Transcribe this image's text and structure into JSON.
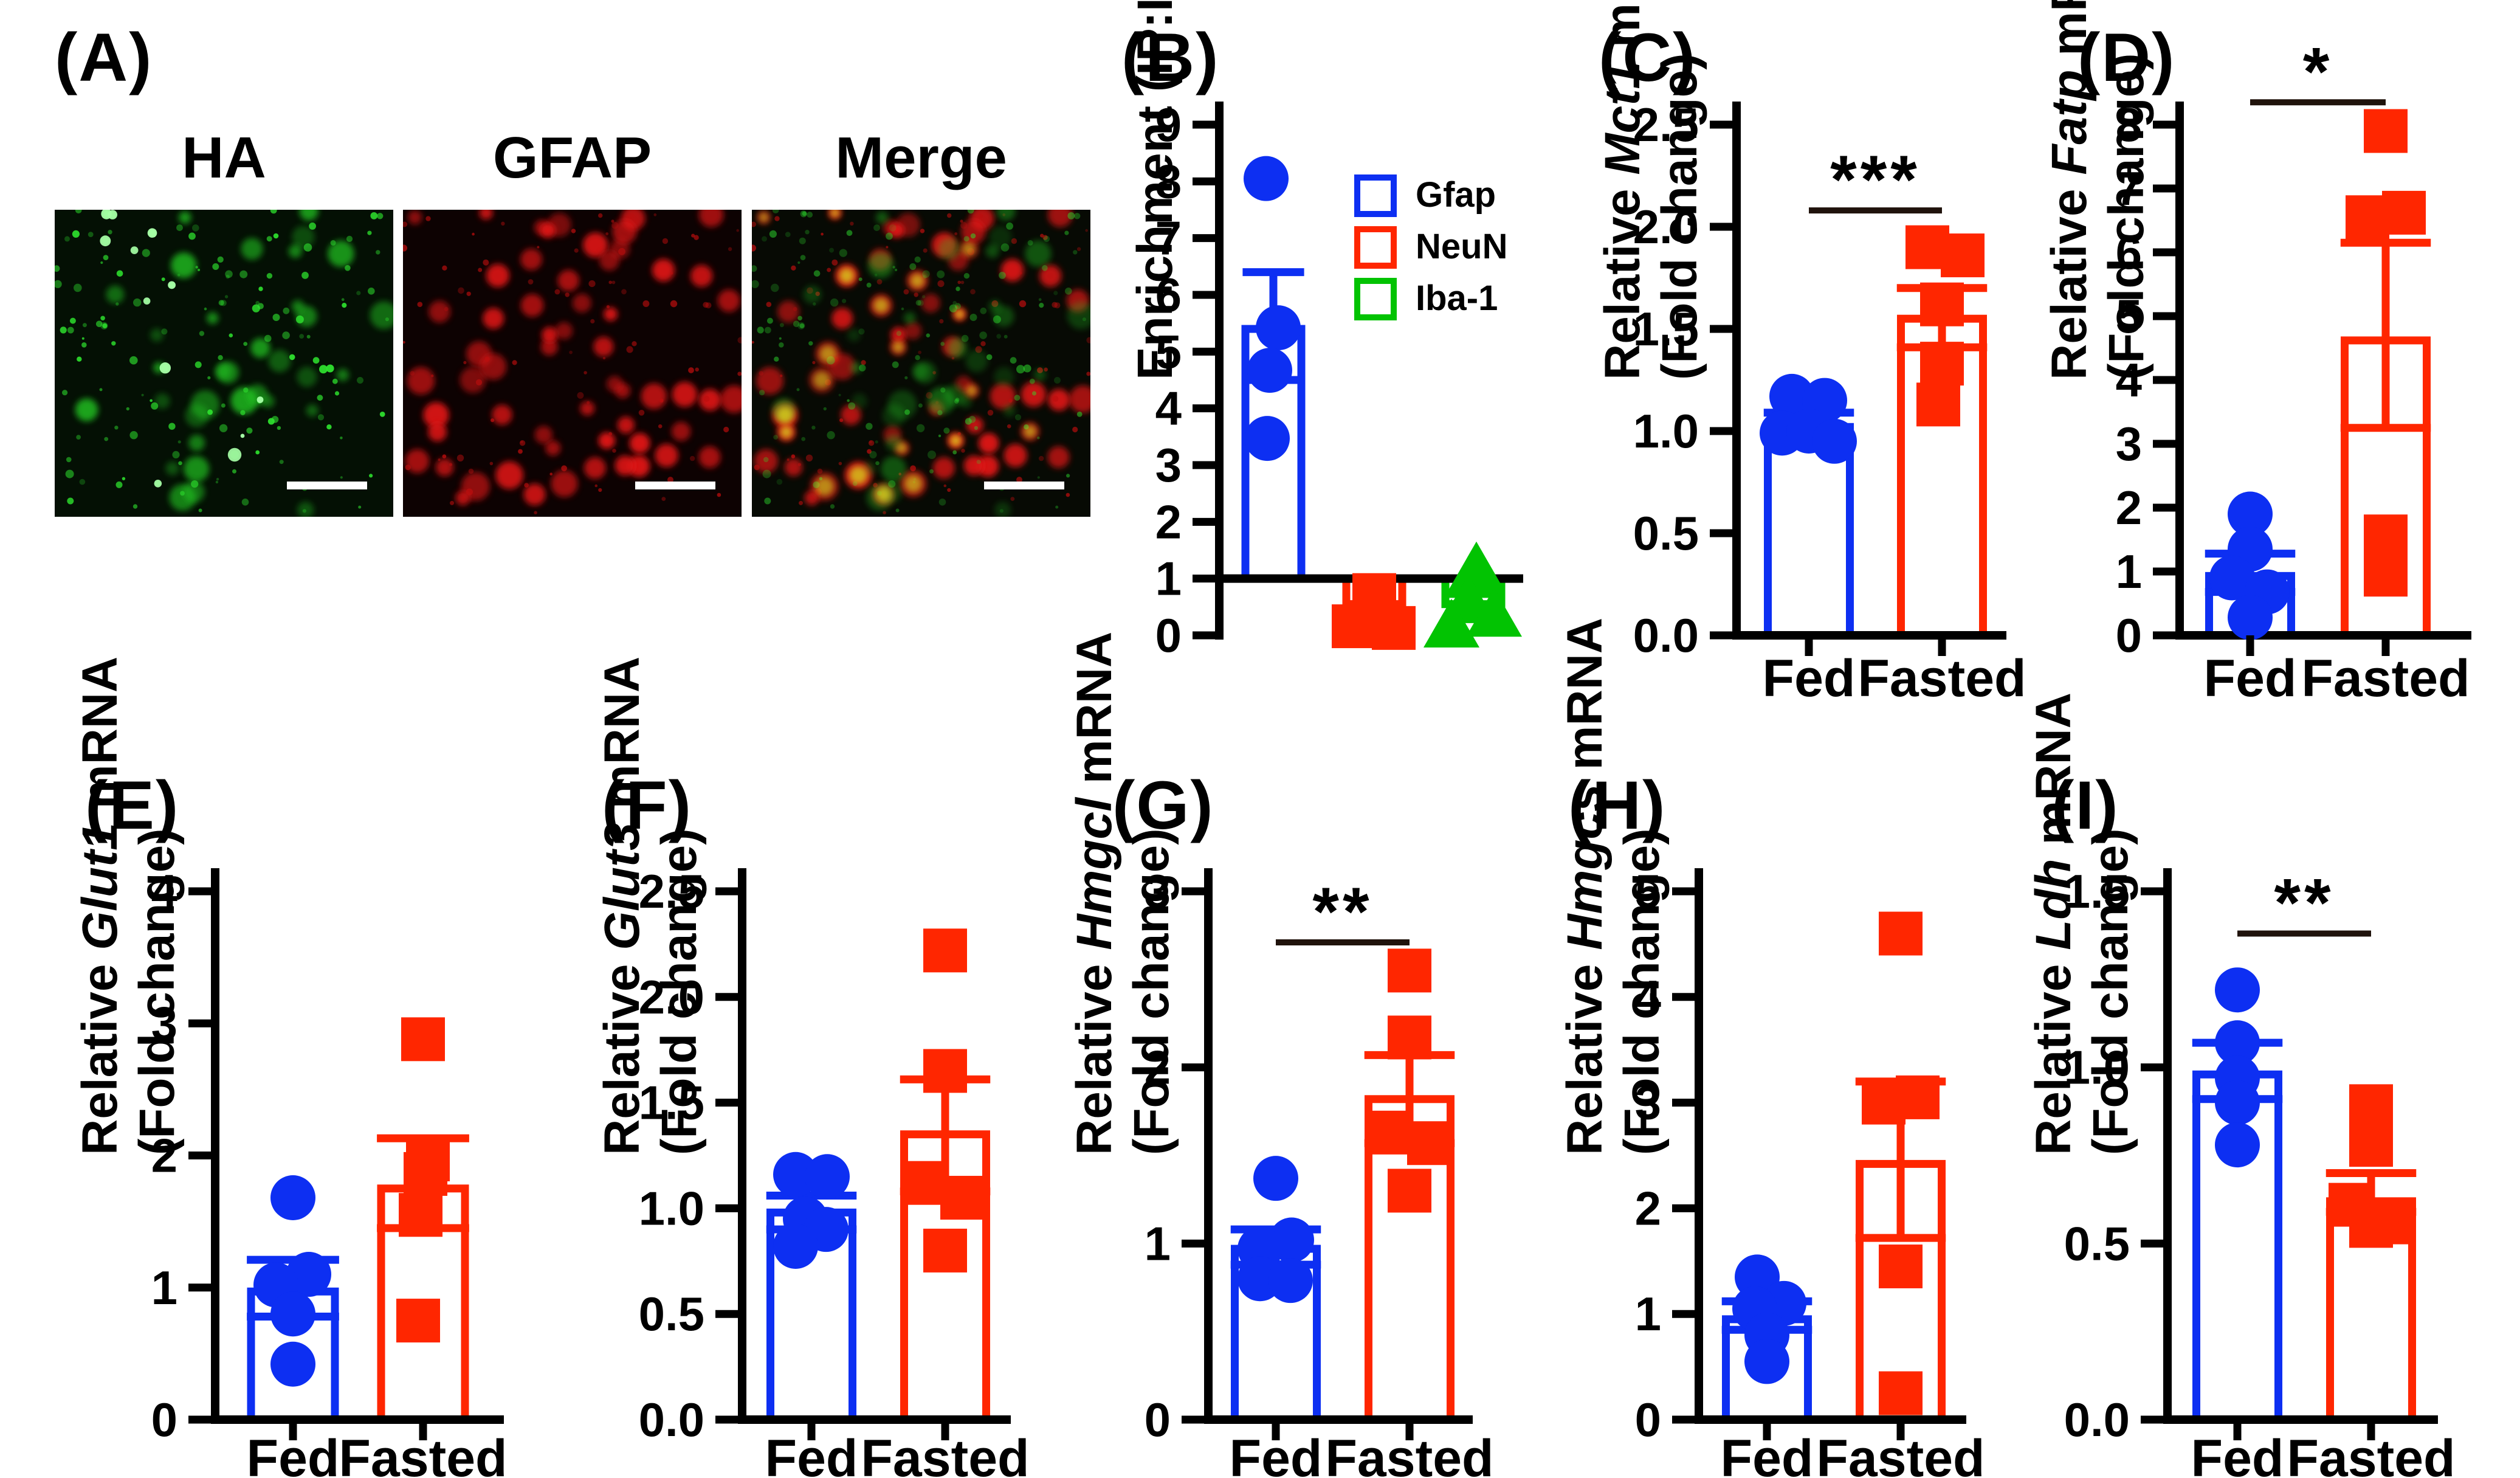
{
  "figure": {
    "colors": {
      "blue": "#0d2ff2",
      "red": "#ff2600",
      "green": "#02c302",
      "axis": "#000000",
      "sig_line": "#20130c",
      "white": "#ffffff"
    },
    "panel_a": {
      "label": "(A)",
      "images": [
        {
          "title": "HA",
          "channel": "green"
        },
        {
          "title": "GFAP",
          "channel": "red"
        },
        {
          "title": "Merge",
          "channel": "merge"
        }
      ],
      "green_hex": "#2ee22e",
      "red_hex": "#e41212",
      "yellow_hex": "#d8ce1c",
      "bg_green": "#041004",
      "bg_red": "#0d0202",
      "bg_merge": "#070a04",
      "scale_bar_color": "#ffffff"
    }
  },
  "chart_data": [
    {
      "id": "B",
      "panel_label": "(B)",
      "type": "bar",
      "ylabel": {
        "line1": "Enrichment (IP:Input)"
      },
      "ylim": [
        0,
        9
      ],
      "baseline": 1,
      "show_x_labels": false,
      "legend": true,
      "yticks": [
        {
          "v": 0,
          "label": "0"
        },
        {
          "v": 1,
          "label": "1"
        },
        {
          "v": 2,
          "label": "2"
        },
        {
          "v": 3,
          "label": "3"
        },
        {
          "v": 4,
          "label": "4"
        },
        {
          "v": 5,
          "label": "5"
        },
        {
          "v": 6,
          "label": "6"
        },
        {
          "v": 7,
          "label": "7"
        },
        {
          "v": 8,
          "label": "8"
        },
        {
          "v": 9,
          "label": "9"
        }
      ],
      "groups": [
        {
          "label": "Gfap",
          "color": "blue",
          "marker": "circle",
          "mean": 5.4,
          "sem": [
            4.5,
            6.4
          ],
          "points": [
            {
              "v": 8.05,
              "dx": -12
            },
            {
              "v": 5.42,
              "dx": 8
            },
            {
              "v": 4.67,
              "dx": -6
            },
            {
              "v": 3.47,
              "dx": -10
            }
          ]
        },
        {
          "label": "NeuN",
          "color": "red",
          "marker": "square",
          "mean": 0.39,
          "sem": [
            0.26,
            0.55
          ],
          "points": [
            {
              "v": 0.71,
              "dx": 0
            },
            {
              "v": 0.32,
              "dx": 0
            },
            {
              "v": 0.16,
              "dx": -34
            },
            {
              "v": 0.13,
              "dx": 32
            }
          ]
        },
        {
          "label": "Iba-1",
          "color": "green",
          "marker": "triangle",
          "mean": 0.55,
          "sem": [
            0.29,
            0.73
          ],
          "points": [
            {
              "v": 1.16,
              "dx": 5
            },
            {
              "v": 0.58,
              "dx": -8
            },
            {
              "v": 0.34,
              "dx": 34
            },
            {
              "v": 0.15,
              "dx": -36
            }
          ]
        }
      ],
      "significance": null
    },
    {
      "id": "C",
      "panel_label": "(C)",
      "type": "bar",
      "ylabel": {
        "pre": "Relative ",
        "gene": "Mct1",
        "post": " mRNA",
        "line2": "(Fold change)"
      },
      "ylim": [
        0,
        2.5
      ],
      "baseline": 0,
      "show_x_labels": true,
      "legend": false,
      "yticks": [
        {
          "v": 0,
          "label": "0.0"
        },
        {
          "v": 0.5,
          "label": "0.5"
        },
        {
          "v": 1,
          "label": "1.0"
        },
        {
          "v": 1.5,
          "label": "1.5"
        },
        {
          "v": 2,
          "label": "2.0"
        },
        {
          "v": 2.5,
          "label": "2.5"
        }
      ],
      "groups": [
        {
          "label": "Fed",
          "color": "blue",
          "marker": "circle",
          "mean": 1.02,
          "sem": [
            0.95,
            1.09
          ],
          "points": [
            {
              "v": 1.17,
              "dx": -28
            },
            {
              "v": 1.15,
              "dx": 26
            },
            {
              "v": 0.99,
              "dx": -44
            },
            {
              "v": 1.0,
              "dx": 0
            },
            {
              "v": 0.95,
              "dx": 42
            }
          ]
        },
        {
          "label": "Fasted",
          "color": "red",
          "marker": "square",
          "mean": 1.55,
          "sem": [
            1.41,
            1.7
          ],
          "points": [
            {
              "v": 1.9,
              "dx": -24
            },
            {
              "v": 1.86,
              "dx": 34
            },
            {
              "v": 1.62,
              "dx": 0
            },
            {
              "v": 1.33,
              "dx": 0
            },
            {
              "v": 1.13,
              "dx": -6
            }
          ]
        }
      ],
      "significance": {
        "label": "***",
        "value": 2.08
      }
    },
    {
      "id": "D",
      "panel_label": "(D)",
      "type": "bar",
      "ylabel": {
        "pre": "Relative ",
        "gene": "Fatp",
        "post": " mRNA",
        "line2": "(Fold change)"
      },
      "ylim": [
        0,
        8
      ],
      "baseline": 0,
      "show_x_labels": true,
      "legend": false,
      "yticks": [
        {
          "v": 0,
          "label": "0"
        },
        {
          "v": 1,
          "label": "1"
        },
        {
          "v": 2,
          "label": "2"
        },
        {
          "v": 3,
          "label": "3"
        },
        {
          "v": 4,
          "label": "4"
        },
        {
          "v": 5,
          "label": "5"
        },
        {
          "v": 6,
          "label": "6"
        },
        {
          "v": 7,
          "label": "7"
        },
        {
          "v": 8,
          "label": "8"
        }
      ],
      "groups": [
        {
          "label": "Fed",
          "color": "blue",
          "marker": "circle",
          "mean": 0.93,
          "sem": [
            0.68,
            1.28
          ],
          "points": [
            {
              "v": 1.9,
              "dx": 0
            },
            {
              "v": 1.35,
              "dx": 0
            },
            {
              "v": 0.9,
              "dx": -30
            },
            {
              "v": 0.68,
              "dx": 28
            },
            {
              "v": 0.28,
              "dx": 0
            }
          ]
        },
        {
          "label": "Fasted",
          "color": "red",
          "marker": "square",
          "mean": 4.62,
          "sem": [
            3.25,
            6.15
          ],
          "points": [
            {
              "v": 7.9,
              "dx": 0
            },
            {
              "v": 6.62,
              "dx": 30
            },
            {
              "v": 6.55,
              "dx": -30
            },
            {
              "v": 1.55,
              "dx": 0
            },
            {
              "v": 0.95,
              "dx": 0
            }
          ]
        }
      ],
      "significance": {
        "label": "*",
        "value": 8.35
      }
    },
    {
      "id": "E",
      "panel_label": "(E)",
      "type": "bar",
      "ylabel": {
        "pre": "Relative ",
        "gene": "Glut1",
        "post": " mRNA",
        "line2": "(Fold change)"
      },
      "ylim": [
        0,
        4
      ],
      "baseline": 0,
      "show_x_labels": true,
      "legend": false,
      "yticks": [
        {
          "v": 0,
          "label": "0"
        },
        {
          "v": 1,
          "label": "1"
        },
        {
          "v": 2,
          "label": "2"
        },
        {
          "v": 3,
          "label": "3"
        },
        {
          "v": 4,
          "label": "4"
        }
      ],
      "groups": [
        {
          "label": "Fed",
          "color": "blue",
          "marker": "circle",
          "mean": 0.97,
          "sem": [
            0.78,
            1.21
          ],
          "points": [
            {
              "v": 1.68,
              "dx": 0
            },
            {
              "v": 1.1,
              "dx": 26
            },
            {
              "v": 1.02,
              "dx": -28
            },
            {
              "v": 0.8,
              "dx": 0
            },
            {
              "v": 0.42,
              "dx": 0
            }
          ]
        },
        {
          "label": "Fasted",
          "color": "red",
          "marker": "square",
          "mean": 1.75,
          "sem": [
            1.45,
            2.13
          ],
          "points": [
            {
              "v": 2.88,
              "dx": 0
            },
            {
              "v": 1.97,
              "dx": 8
            },
            {
              "v": 1.86,
              "dx": 4
            },
            {
              "v": 1.55,
              "dx": -4
            },
            {
              "v": 0.75,
              "dx": -8
            }
          ]
        }
      ],
      "significance": null
    },
    {
      "id": "F",
      "panel_label": "(F)",
      "type": "bar",
      "ylabel": {
        "pre": "Relative ",
        "gene": "Glut3",
        "post": " mRNA",
        "line2": "(Fold change)"
      },
      "ylim": [
        0,
        2.5
      ],
      "baseline": 0,
      "show_x_labels": true,
      "legend": false,
      "yticks": [
        {
          "v": 0,
          "label": "0.0"
        },
        {
          "v": 0.5,
          "label": "0.5"
        },
        {
          "v": 1,
          "label": "1.0"
        },
        {
          "v": 1.5,
          "label": "1.5"
        },
        {
          "v": 2,
          "label": "2.0"
        },
        {
          "v": 2.5,
          "label": "2.5"
        }
      ],
      "groups": [
        {
          "label": "Fed",
          "color": "blue",
          "marker": "circle",
          "mean": 0.98,
          "sem": [
            0.9,
            1.06
          ],
          "points": [
            {
              "v": 1.16,
              "dx": -26
            },
            {
              "v": 1.15,
              "dx": 26
            },
            {
              "v": 0.95,
              "dx": -10
            },
            {
              "v": 0.9,
              "dx": 24
            },
            {
              "v": 0.82,
              "dx": -26
            }
          ]
        },
        {
          "label": "Fasted",
          "color": "red",
          "marker": "square",
          "mean": 1.35,
          "sem": [
            1.08,
            1.61
          ],
          "points": [
            {
              "v": 2.22,
              "dx": 0
            },
            {
              "v": 1.65,
              "dx": 0
            },
            {
              "v": 1.12,
              "dx": -34
            },
            {
              "v": 1.05,
              "dx": 28
            },
            {
              "v": 0.8,
              "dx": 0
            }
          ]
        }
      ],
      "significance": null
    },
    {
      "id": "G",
      "panel_label": "(G)",
      "type": "bar",
      "ylabel": {
        "pre": "Relative ",
        "gene": "Hmgcl",
        "post": " mRNA",
        "line2": "(Fold change)"
      },
      "ylim": [
        0,
        3
      ],
      "baseline": 0,
      "show_x_labels": true,
      "legend": false,
      "yticks": [
        {
          "v": 0,
          "label": "0"
        },
        {
          "v": 1,
          "label": "1"
        },
        {
          "v": 2,
          "label": "2"
        },
        {
          "v": 3,
          "label": "3"
        }
      ],
      "groups": [
        {
          "label": "Fed",
          "color": "blue",
          "marker": "circle",
          "mean": 0.97,
          "sem": [
            0.88,
            1.08
          ],
          "points": [
            {
              "v": 1.37,
              "dx": 0
            },
            {
              "v": 1.02,
              "dx": 26
            },
            {
              "v": 0.97,
              "dx": -26
            },
            {
              "v": 0.8,
              "dx": -26
            },
            {
              "v": 0.79,
              "dx": 24
            }
          ]
        },
        {
          "label": "Fasted",
          "color": "red",
          "marker": "square",
          "mean": 1.82,
          "sem": [
            1.57,
            2.07
          ],
          "points": [
            {
              "v": 2.55,
              "dx": 0
            },
            {
              "v": 2.17,
              "dx": 0
            },
            {
              "v": 1.63,
              "dx": -34
            },
            {
              "v": 1.57,
              "dx": 32
            },
            {
              "v": 1.3,
              "dx": 0
            }
          ]
        }
      ],
      "significance": {
        "label": "**",
        "value": 2.71
      }
    },
    {
      "id": "H",
      "panel_label": "(H)",
      "type": "bar",
      "ylabel": {
        "pre": "Relative ",
        "gene": "Hmgcs",
        "post": " mRNA",
        "line2": "(Fold change)"
      },
      "ylim": [
        0,
        5
      ],
      "baseline": 0,
      "show_x_labels": true,
      "legend": false,
      "yticks": [
        {
          "v": 0,
          "label": "0"
        },
        {
          "v": 1,
          "label": "1"
        },
        {
          "v": 2,
          "label": "2"
        },
        {
          "v": 3,
          "label": "3"
        },
        {
          "v": 4,
          "label": "4"
        },
        {
          "v": 5,
          "label": "5"
        }
      ],
      "groups": [
        {
          "label": "Fed",
          "color": "blue",
          "marker": "circle",
          "mean": 0.95,
          "sem": [
            0.85,
            1.12
          ],
          "points": [
            {
              "v": 1.35,
              "dx": -16
            },
            {
              "v": 1.1,
              "dx": 28
            },
            {
              "v": 1.05,
              "dx": -20
            },
            {
              "v": 0.8,
              "dx": 0
            },
            {
              "v": 0.55,
              "dx": 0
            }
          ]
        },
        {
          "label": "Fasted",
          "color": "red",
          "marker": "square",
          "mean": 2.42,
          "sem": [
            1.72,
            3.2
          ],
          "points": [
            {
              "v": 4.6,
              "dx": 0
            },
            {
              "v": 3.05,
              "dx": 28
            },
            {
              "v": 3.0,
              "dx": -28
            },
            {
              "v": 1.45,
              "dx": 0
            },
            {
              "v": 0.25,
              "dx": 0
            }
          ]
        }
      ],
      "significance": null
    },
    {
      "id": "I",
      "panel_label": "(I)",
      "type": "bar",
      "ylabel": {
        "pre": "Relative ",
        "gene": "Ldh",
        "post": " mRNA",
        "line2": "(Fold change)"
      },
      "ylim": [
        0,
        1.5
      ],
      "baseline": 0,
      "show_x_labels": true,
      "legend": false,
      "yticks": [
        {
          "v": 0,
          "label": "0.0"
        },
        {
          "v": 0.5,
          "label": "0.5"
        },
        {
          "v": 1,
          "label": "1.0"
        },
        {
          "v": 1.5,
          "label": "1.5"
        }
      ],
      "groups": [
        {
          "label": "Fed",
          "color": "blue",
          "marker": "circle",
          "mean": 0.98,
          "sem": [
            0.91,
            1.07
          ],
          "points": [
            {
              "v": 1.22,
              "dx": 0
            },
            {
              "v": 1.07,
              "dx": 0
            },
            {
              "v": 0.97,
              "dx": 0
            },
            {
              "v": 0.9,
              "dx": 0
            },
            {
              "v": 0.78,
              "dx": 0
            }
          ]
        },
        {
          "label": "Fasted",
          "color": "red",
          "marker": "square",
          "mean": 0.62,
          "sem": [
            0.59,
            0.7
          ],
          "points": [
            {
              "v": 0.89,
              "dx": 0
            },
            {
              "v": 0.78,
              "dx": 0
            },
            {
              "v": 0.61,
              "dx": -34
            },
            {
              "v": 0.55,
              "dx": 0
            },
            {
              "v": 0.56,
              "dx": 36
            }
          ]
        }
      ],
      "significance": {
        "label": "**",
        "value": 1.38
      }
    }
  ]
}
